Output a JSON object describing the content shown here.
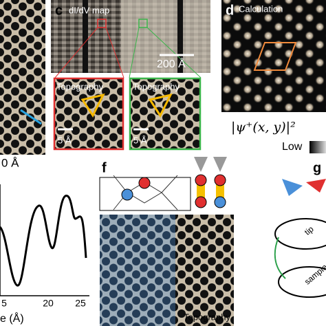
{
  "panels": {
    "b": {
      "scale": "0 Å"
    },
    "c": {
      "label": "c",
      "title": "dI/dV map",
      "scale": "200 Å",
      "insets": [
        {
          "title": "Topography",
          "scale": "5 Å"
        },
        {
          "title": "Topography",
          "scale": "5 Å"
        }
      ]
    },
    "d": {
      "label": "d",
      "title": "Calculation",
      "formula": "|ψ⁺(x, y)|²",
      "colorbar_low": "Low"
    },
    "e": {
      "xticks": [
        "5",
        "20",
        "25"
      ],
      "xlabel": "e (Å)"
    },
    "f": {
      "label": "f",
      "image_label": "Topography"
    },
    "g": {
      "label": "g",
      "tip": "tip",
      "sample": "sample"
    }
  }
}
